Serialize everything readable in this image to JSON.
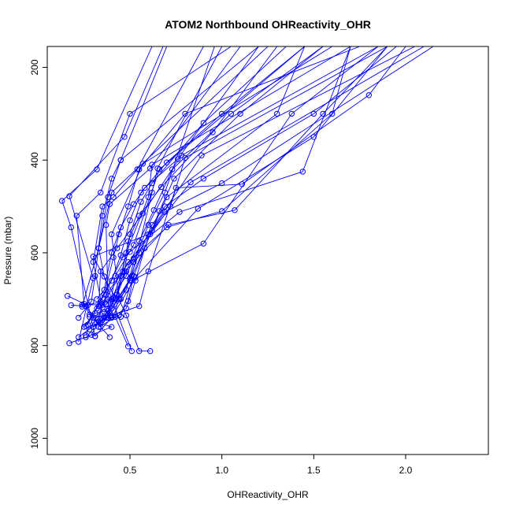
{
  "chart_data": {
    "type": "line",
    "title": "ATOM2 Northbound OHReactivity_OHR",
    "xlabel": "OHReactivity_OHR",
    "ylabel": "Pressure (mbar)",
    "xlim": [
      0.05,
      2.45
    ],
    "ylim": [
      1035,
      155
    ],
    "y_reversed": true,
    "x_ticks": [
      0.5,
      1.0,
      1.5,
      2.0
    ],
    "x_tick_labels": [
      "0.5",
      "1.0",
      "1.5",
      "2.0"
    ],
    "y_ticks": [
      200,
      400,
      600,
      800,
      1000
    ],
    "y_tick_labels": [
      "200",
      "400",
      "600",
      "800",
      "1000"
    ],
    "series_color": "#0000ff",
    "grid": false,
    "series": [
      {
        "points": [
          [
            0.31,
            780
          ],
          [
            0.18,
            545
          ],
          [
            0.13,
            488
          ],
          [
            0.32,
            420
          ],
          [
            0.62,
            155
          ]
        ]
      },
      {
        "points": [
          [
            0.22,
            792
          ],
          [
            0.3,
            655
          ],
          [
            0.17,
            478
          ],
          [
            0.47,
            350
          ],
          [
            0.68,
            155
          ]
        ]
      },
      {
        "points": [
          [
            0.39,
            782
          ],
          [
            0.28,
            733
          ],
          [
            0.25,
            710
          ],
          [
            0.21,
            520
          ],
          [
            0.34,
            470
          ],
          [
            0.5,
            300
          ],
          [
            1.05,
            155
          ]
        ]
      },
      {
        "points": [
          [
            0.51,
            812
          ],
          [
            0.4,
            700
          ],
          [
            0.36,
            651
          ],
          [
            0.33,
            590
          ],
          [
            0.4,
            470
          ],
          [
            1.25,
            155
          ]
        ]
      },
      {
        "points": [
          [
            0.61,
            812
          ],
          [
            0.55,
            812
          ],
          [
            0.48,
            735
          ],
          [
            0.44,
            700
          ],
          [
            0.4,
            560
          ],
          [
            0.57,
            408
          ],
          [
            1.6,
            155
          ]
        ]
      },
      {
        "points": [
          [
            0.49,
            802
          ],
          [
            0.42,
            738
          ],
          [
            0.45,
            650
          ],
          [
            0.48,
            600
          ],
          [
            0.6,
            480
          ],
          [
            0.62,
            410
          ],
          [
            1.7,
            155
          ]
        ]
      },
      {
        "points": [
          [
            0.3,
            760
          ],
          [
            0.38,
            740
          ],
          [
            0.42,
            650
          ],
          [
            0.52,
            583
          ],
          [
            0.66,
            420
          ],
          [
            1.45,
            155
          ]
        ]
      },
      {
        "points": [
          [
            0.25,
            760
          ],
          [
            0.33,
            715
          ],
          [
            0.34,
            640
          ],
          [
            0.43,
            590
          ],
          [
            0.57,
            515
          ],
          [
            0.78,
            390
          ],
          [
            1.85,
            155
          ]
        ]
      },
      {
        "points": [
          [
            0.16,
            693
          ],
          [
            0.27,
            713
          ],
          [
            0.42,
            697
          ],
          [
            0.3,
            608
          ],
          [
            0.6,
            560
          ],
          [
            0.89,
            390
          ],
          [
            2.05,
            155
          ]
        ]
      },
      {
        "points": [
          [
            0.24,
            712
          ],
          [
            0.37,
            712
          ],
          [
            0.48,
            650
          ],
          [
            0.52,
            612
          ],
          [
            0.72,
            500
          ],
          [
            0.8,
            395
          ],
          [
            1.9,
            155
          ]
        ]
      },
      {
        "points": [
          [
            0.18,
            713
          ],
          [
            0.26,
            715
          ],
          [
            0.34,
            760
          ],
          [
            0.5,
            660
          ],
          [
            0.62,
            552
          ],
          [
            0.83,
            448
          ],
          [
            2.1,
            155
          ]
        ]
      },
      {
        "points": [
          [
            0.17,
            795
          ],
          [
            0.26,
            782
          ],
          [
            0.4,
            760
          ],
          [
            0.32,
            750
          ],
          [
            0.37,
            690
          ],
          [
            0.69,
            512
          ],
          [
            1.0,
            450
          ],
          [
            2.15,
            155
          ]
        ]
      },
      {
        "points": [
          [
            0.22,
            782
          ],
          [
            0.36,
            740
          ],
          [
            0.45,
            738
          ],
          [
            0.51,
            660
          ],
          [
            0.9,
            580
          ],
          [
            1.38,
            300
          ],
          [
            1.85,
            155
          ]
        ]
      },
      {
        "points": [
          [
            0.27,
            755
          ],
          [
            0.46,
            610
          ],
          [
            0.5,
            598
          ],
          [
            0.77,
            512
          ],
          [
            1.44,
            425
          ],
          [
            1.7,
            155
          ]
        ]
      },
      {
        "points": [
          [
            0.29,
            777
          ],
          [
            0.33,
            748
          ],
          [
            0.35,
            712
          ],
          [
            0.49,
            620
          ],
          [
            0.7,
            545
          ],
          [
            1.0,
            510
          ],
          [
            1.6,
            300
          ],
          [
            1.7,
            155
          ]
        ]
      },
      {
        "points": [
          [
            0.31,
            780
          ],
          [
            0.4,
            740
          ],
          [
            0.53,
            653
          ],
          [
            0.87,
            505
          ],
          [
            1.5,
            350
          ],
          [
            1.9,
            155
          ]
        ]
      },
      {
        "points": [
          [
            0.26,
            778
          ],
          [
            0.31,
            730
          ],
          [
            0.38,
            725
          ],
          [
            0.45,
            650
          ],
          [
            0.71,
            540
          ],
          [
            1.07,
            508
          ],
          [
            1.55,
            300
          ],
          [
            1.9,
            155
          ]
        ]
      },
      {
        "points": [
          [
            0.3,
            740
          ],
          [
            0.4,
            735
          ],
          [
            0.55,
            715
          ],
          [
            0.6,
            640
          ],
          [
            0.75,
            460
          ],
          [
            1.11,
            452
          ],
          [
            1.8,
            260
          ],
          [
            2.0,
            155
          ]
        ]
      },
      {
        "points": [
          [
            0.33,
            760
          ],
          [
            0.44,
            735
          ],
          [
            0.49,
            704
          ],
          [
            0.52,
            650
          ],
          [
            0.61,
            560
          ],
          [
            0.7,
            480
          ],
          [
            1.3,
            300
          ],
          [
            1.45,
            155
          ]
        ]
      },
      {
        "points": [
          [
            0.28,
            738
          ],
          [
            0.36,
            736
          ],
          [
            0.4,
            720
          ],
          [
            0.51,
            650
          ],
          [
            0.62,
            470
          ],
          [
            0.65,
            418
          ],
          [
            1.0,
            155
          ]
        ]
      },
      {
        "points": [
          [
            0.35,
            745
          ],
          [
            0.39,
            730
          ],
          [
            0.38,
            700
          ],
          [
            0.37,
            540
          ],
          [
            0.39,
            495
          ],
          [
            0.61,
            418
          ],
          [
            1.1,
            155
          ]
        ]
      },
      {
        "points": [
          [
            0.28,
            765
          ],
          [
            0.35,
            718
          ],
          [
            0.3,
            620
          ],
          [
            0.35,
            500
          ],
          [
            0.41,
            480
          ],
          [
            0.54,
            420
          ],
          [
            0.9,
            155
          ]
        ]
      },
      {
        "points": [
          [
            0.24,
            716
          ],
          [
            0.33,
            590
          ],
          [
            0.38,
            480
          ],
          [
            0.45,
            400
          ],
          [
            0.7,
            155
          ]
        ]
      },
      {
        "points": [
          [
            0.22,
            740
          ],
          [
            0.29,
            705
          ],
          [
            0.31,
            650
          ],
          [
            0.35,
            520
          ],
          [
            0.4,
            440
          ],
          [
            0.45,
            400
          ],
          [
            1.2,
            155
          ]
        ]
      },
      {
        "points": [
          [
            0.37,
            710
          ],
          [
            0.44,
            700
          ],
          [
            0.48,
            680
          ],
          [
            0.52,
            620
          ],
          [
            0.6,
            540
          ],
          [
            0.69,
            470
          ],
          [
            0.96,
            155
          ]
        ]
      },
      {
        "points": [
          [
            0.34,
            750
          ],
          [
            0.42,
            700
          ],
          [
            0.46,
            640
          ],
          [
            0.49,
            575
          ],
          [
            0.55,
            520
          ],
          [
            0.67,
            458
          ],
          [
            0.95,
            340
          ],
          [
            1.3,
            155
          ]
        ]
      },
      {
        "points": [
          [
            0.4,
            738
          ],
          [
            0.48,
            720
          ],
          [
            0.53,
            660
          ],
          [
            0.58,
            590
          ],
          [
            0.66,
            510
          ],
          [
            0.74,
            440
          ],
          [
            1.1,
            300
          ],
          [
            1.55,
            155
          ]
        ]
      },
      {
        "points": [
          [
            0.26,
            758
          ],
          [
            0.32,
            720
          ],
          [
            0.36,
            690
          ],
          [
            0.41,
            610
          ],
          [
            0.44,
            560
          ],
          [
            0.49,
            500
          ],
          [
            0.55,
            420
          ],
          [
            0.8,
            300
          ],
          [
            1.75,
            155
          ]
        ]
      },
      {
        "points": [
          [
            0.36,
            728
          ],
          [
            0.42,
            700
          ],
          [
            0.47,
            640
          ],
          [
            0.5,
            560
          ],
          [
            0.56,
            490
          ],
          [
            0.62,
            450
          ],
          [
            0.9,
            320
          ],
          [
            1.35,
            155
          ]
        ]
      },
      {
        "points": [
          [
            0.3,
            760
          ],
          [
            0.37,
            740
          ],
          [
            0.43,
            690
          ],
          [
            0.48,
            640
          ],
          [
            0.55,
            575
          ],
          [
            0.63,
            508
          ],
          [
            0.73,
            420
          ],
          [
            1.05,
            300
          ],
          [
            1.55,
            155
          ]
        ]
      },
      {
        "points": [
          [
            0.32,
            700
          ],
          [
            0.36,
            680
          ],
          [
            0.4,
            600
          ],
          [
            0.45,
            545
          ],
          [
            0.52,
            495
          ],
          [
            0.58,
            460
          ],
          [
            0.76,
            398
          ],
          [
            1.2,
            155
          ]
        ]
      },
      {
        "points": [
          [
            0.34,
            705
          ],
          [
            0.4,
            660
          ],
          [
            0.45,
            605
          ],
          [
            0.5,
            530
          ],
          [
            0.56,
            470
          ],
          [
            0.7,
            405
          ],
          [
            1.0,
            300
          ],
          [
            1.45,
            155
          ]
        ]
      },
      {
        "points": [
          [
            0.38,
            740
          ],
          [
            0.45,
            700
          ],
          [
            0.5,
            655
          ],
          [
            0.55,
            600
          ],
          [
            0.62,
            540
          ],
          [
            0.69,
            500
          ],
          [
            0.9,
            440
          ],
          [
            1.5,
            300
          ],
          [
            1.95,
            155
          ]
        ]
      }
    ]
  }
}
